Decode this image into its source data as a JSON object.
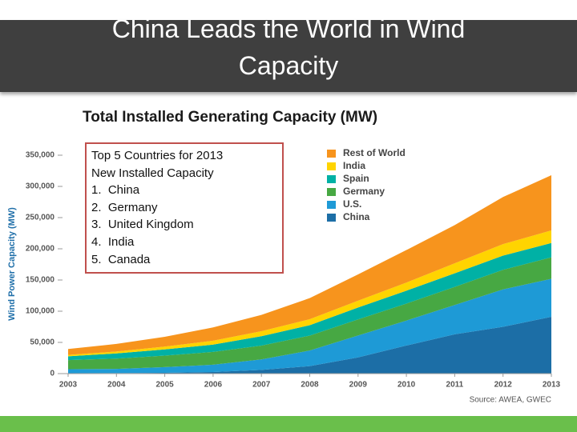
{
  "slide": {
    "title": "China Leads the World in Wind Capacity"
  },
  "chart_data": {
    "type": "stacked-area",
    "title": "Total Installed Generating Capacity (MW)",
    "y_label": "Wind Power Capacity (MW)",
    "source": "Source: AWEA, GWEC",
    "annotations": [
      "Top 5 Countries for 2013",
      "New Installed Capacity",
      "1.  China",
      "2.  Germany",
      "3.  United Kingdom",
      "4.  India",
      "5.  Canada"
    ],
    "x": [
      2003,
      2004,
      2005,
      2006,
      2007,
      2008,
      2009,
      2010,
      2011,
      2012,
      2013
    ],
    "xlim": [
      2003,
      2013
    ],
    "xticks": [
      2003,
      2004,
      2005,
      2006,
      2007,
      2008,
      2009,
      2010,
      2011,
      2012,
      2013
    ],
    "ylim": [
      0,
      350000
    ],
    "yticks": [
      0,
      {
        "value": 50000,
        "label": "50,000"
      },
      {
        "value": 100000,
        "label": "100,000"
      },
      {
        "value": 150000,
        "label": "150,000"
      },
      {
        "value": 200000,
        "label": "200,000"
      },
      {
        "value": 250000,
        "label": "250,000"
      },
      {
        "value": 300000,
        "label": "300,000"
      },
      {
        "value": 350000,
        "label": "350,000"
      }
    ],
    "series": [
      {
        "name": "China",
        "color": "#1c6ea6",
        "values": [
          600,
          800,
          1300,
          2600,
          5900,
          12000,
          26000,
          45000,
          63000,
          75000,
          91000
        ]
      },
      {
        "name": "U.S.",
        "color": "#1e9ad6",
        "values": [
          6400,
          6700,
          9100,
          11600,
          16800,
          25000,
          35000,
          40000,
          47000,
          60000,
          61000
        ]
      },
      {
        "name": "Germany",
        "color": "#47a843",
        "values": [
          14600,
          16600,
          18400,
          20600,
          22200,
          23900,
          25800,
          27200,
          29000,
          31300,
          34300
        ]
      },
      {
        "name": "Spain",
        "color": "#00b1a5",
        "values": [
          6200,
          8300,
          10000,
          11600,
          15100,
          16700,
          19100,
          20700,
          21700,
          22800,
          23000
        ]
      },
      {
        "name": "India",
        "color": "#ffd400",
        "values": [
          2100,
          3000,
          4400,
          6300,
          7900,
          9600,
          10900,
          13000,
          16000,
          18400,
          20200
        ]
      },
      {
        "name": "Rest of World",
        "color": "#f7941d",
        "values": [
          9500,
          12200,
          15800,
          21300,
          26100,
          33800,
          42200,
          52100,
          61300,
          75500,
          88500
        ]
      }
    ]
  }
}
